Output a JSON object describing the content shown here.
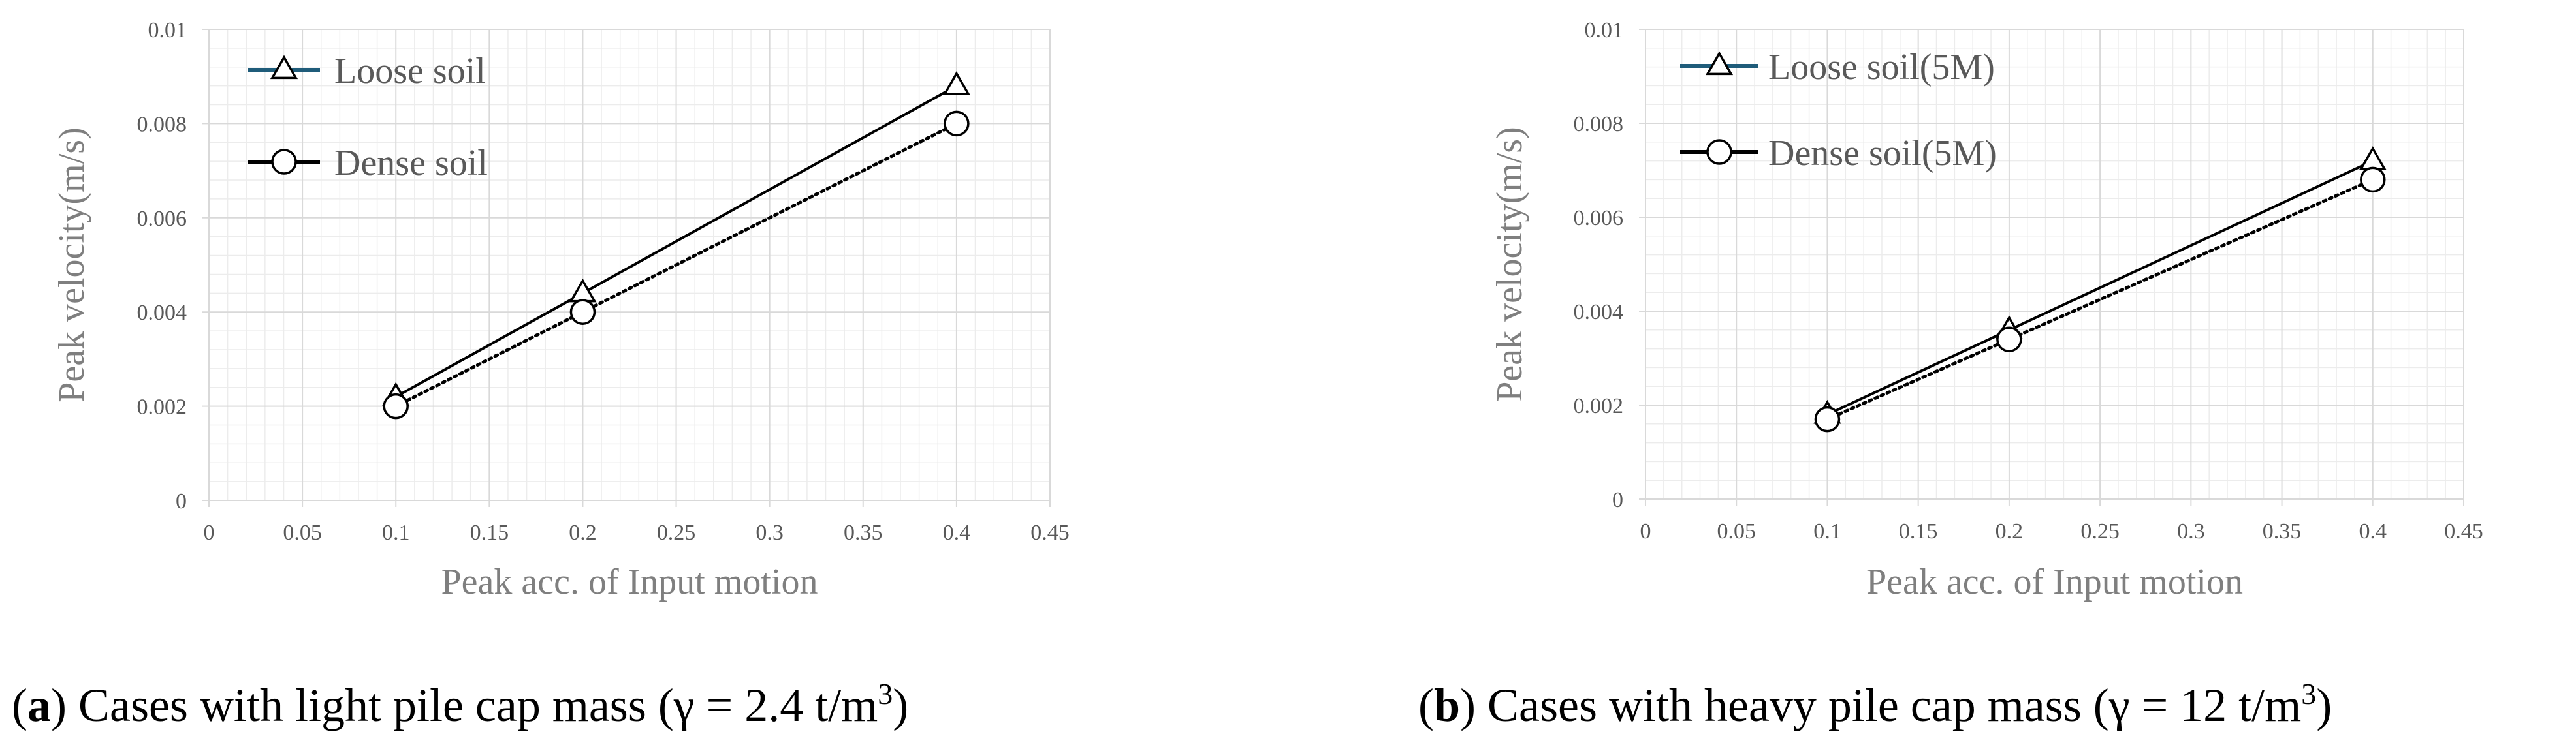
{
  "chart_data": [
    {
      "type": "line",
      "title": "",
      "xlabel": "Peak acc. of Input motion",
      "ylabel": "Peak velocity(m/s)",
      "xlim": [
        0,
        0.45
      ],
      "ylim": [
        0,
        0.01
      ],
      "x_ticks": [
        "0",
        "0.05",
        "0.1",
        "0.15",
        "0.2",
        "0.25",
        "0.3",
        "0.35",
        "0.4",
        "0.45"
      ],
      "y_ticks": [
        "0",
        "0.002",
        "0.004",
        "0.006",
        "0.008",
        "0.01"
      ],
      "grid": true,
      "legend_position": "top-left",
      "series": [
        {
          "name": "Loose soil",
          "x": [
            0.1,
            0.2,
            0.4
          ],
          "y": [
            0.0022,
            0.0044,
            0.0088
          ],
          "marker": "triangle",
          "line": "solid",
          "legend_line_color": "#1f5c7a"
        },
        {
          "name": "Dense soil",
          "x": [
            0.1,
            0.2,
            0.4
          ],
          "y": [
            0.002,
            0.004,
            0.008
          ],
          "marker": "circle",
          "line": "dotted",
          "legend_line_color": "#000000"
        }
      ],
      "caption": {
        "label": "a",
        "text": ") Cases with light pile cap mass (γ = 2.4 t/m",
        "sup": "3",
        "end": ")"
      }
    },
    {
      "type": "line",
      "title": "",
      "xlabel": "Peak acc. of Input motion",
      "ylabel": "Peak velocity(m/s)",
      "xlim": [
        0,
        0.45
      ],
      "ylim": [
        0,
        0.01
      ],
      "x_ticks": [
        "0",
        "0.05",
        "0.1",
        "0.15",
        "0.2",
        "0.25",
        "0.3",
        "0.35",
        "0.4",
        "0.45"
      ],
      "y_ticks": [
        "0",
        "0.002",
        "0.004",
        "0.006",
        "0.008",
        "0.01"
      ],
      "grid": true,
      "legend_position": "top-left",
      "series": [
        {
          "name": "Loose soil(5M)",
          "x": [
            0.1,
            0.2,
            0.4
          ],
          "y": [
            0.0018,
            0.0036,
            0.0072
          ],
          "marker": "triangle",
          "line": "solid",
          "legend_line_color": "#1f5c7a"
        },
        {
          "name": "Dense soil(5M)",
          "x": [
            0.1,
            0.2,
            0.4
          ],
          "y": [
            0.0017,
            0.0034,
            0.0068
          ],
          "marker": "circle",
          "line": "dotted",
          "legend_line_color": "#000000"
        }
      ],
      "caption": {
        "label": "b",
        "text": ") Cases with heavy pile cap mass (γ = 12 t/m",
        "sup": "3",
        "end": ")"
      }
    }
  ]
}
